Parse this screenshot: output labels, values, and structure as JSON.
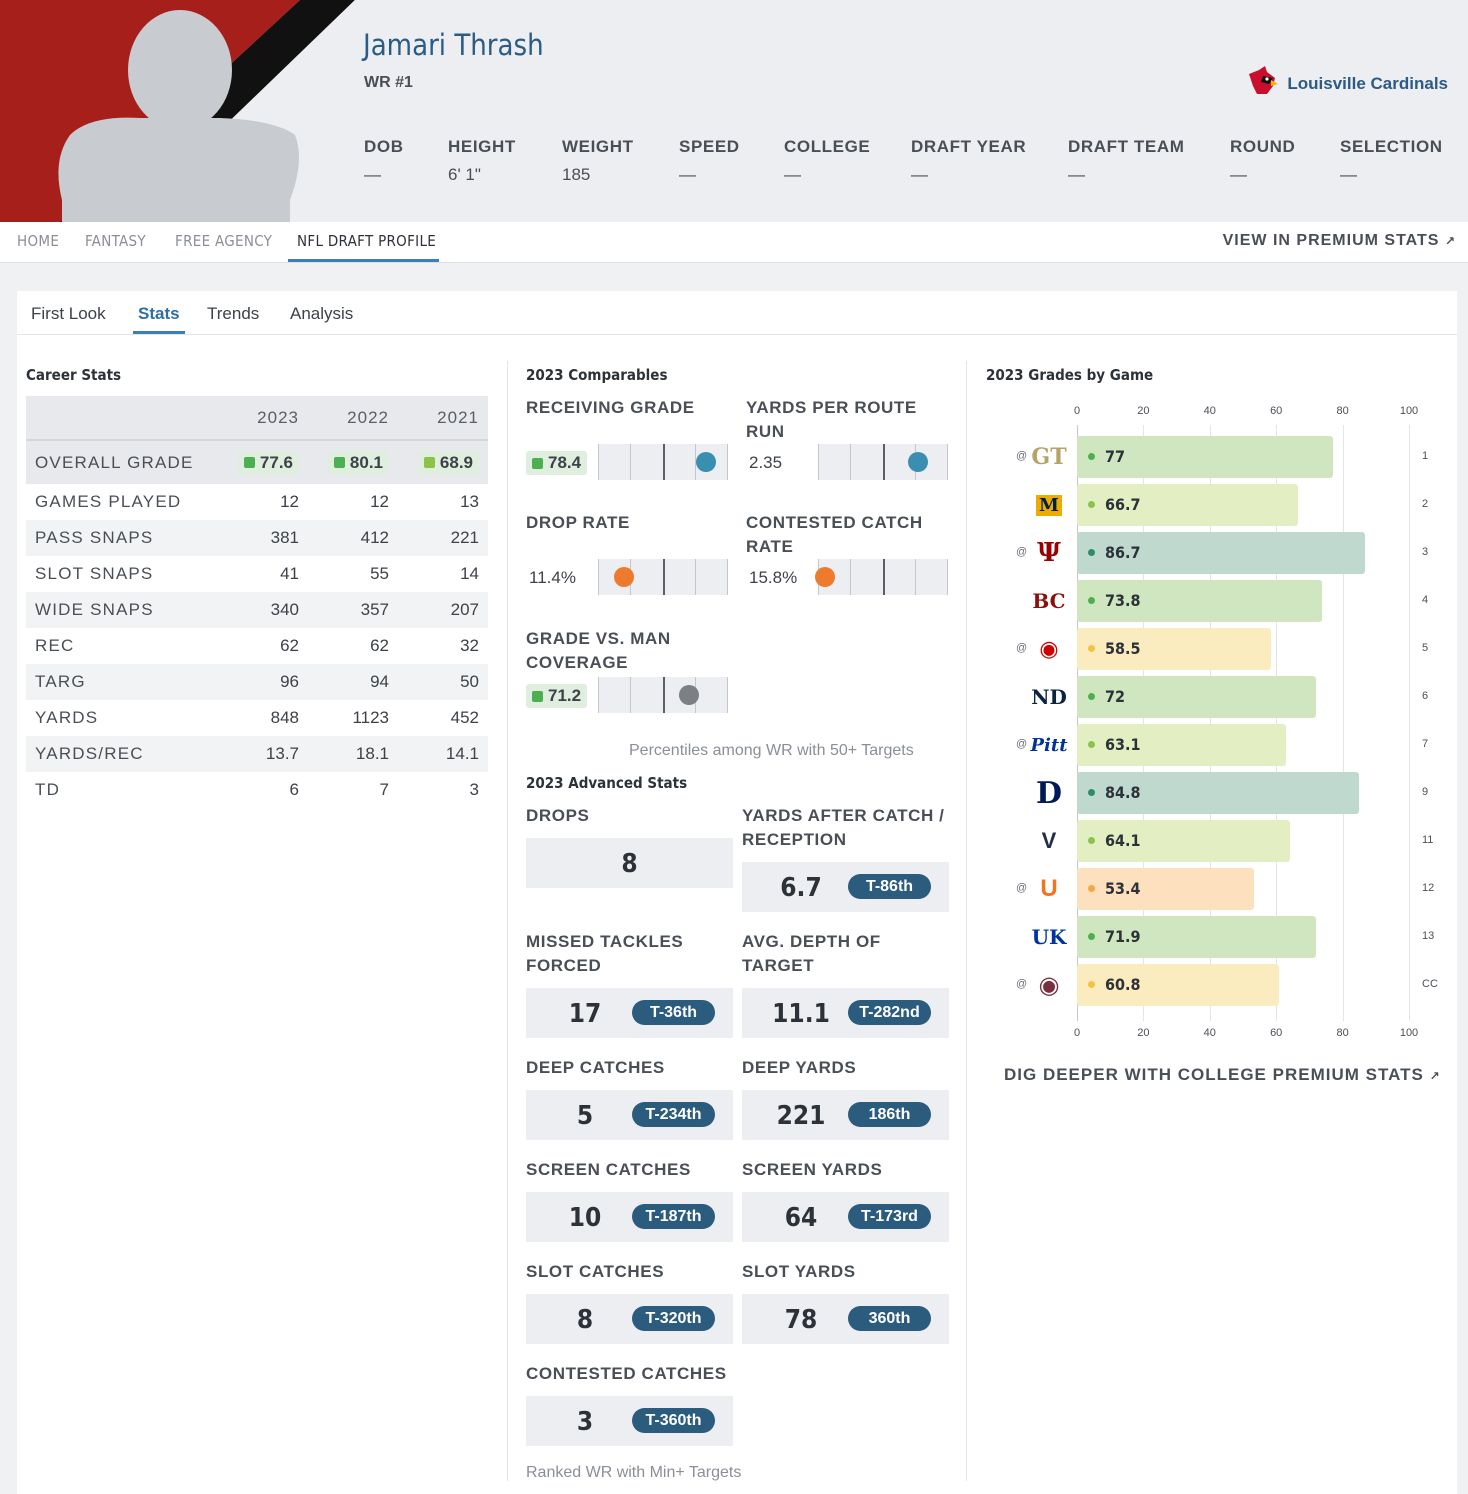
{
  "player": {
    "name": "Jamari Thrash",
    "position": "WR #1",
    "team": "Louisville Cardinals"
  },
  "header_stats": [
    {
      "label": "DOB",
      "value": "—"
    },
    {
      "label": "HEIGHT",
      "value": "6' 1\""
    },
    {
      "label": "WEIGHT",
      "value": "185"
    },
    {
      "label": "SPEED",
      "value": "—"
    },
    {
      "label": "COLLEGE",
      "value": "—"
    },
    {
      "label": "DRAFT YEAR",
      "value": "—"
    },
    {
      "label": "DRAFT TEAM",
      "value": "—"
    },
    {
      "label": "ROUND",
      "value": "—"
    },
    {
      "label": "SELECTION",
      "value": "—"
    }
  ],
  "nav": {
    "items": [
      "HOME",
      "FANTASY",
      "FREE AGENCY",
      "NFL DRAFT PROFILE"
    ],
    "active": "NFL DRAFT PROFILE",
    "premium_link": "VIEW IN PREMIUM STATS"
  },
  "subtabs": [
    "First Look",
    "Stats",
    "Trends",
    "Analysis"
  ],
  "career_stats": {
    "title": "Career Stats",
    "years": [
      "2023",
      "2022",
      "2021"
    ],
    "rows": [
      {
        "label": "OVERALL GRADE",
        "values": [
          "77.6",
          "80.1",
          "68.9"
        ],
        "grade": true
      },
      {
        "label": "GAMES PLAYED",
        "values": [
          "12",
          "12",
          "13"
        ]
      },
      {
        "label": "PASS SNAPS",
        "values": [
          "381",
          "412",
          "221"
        ]
      },
      {
        "label": "SLOT SNAPS",
        "values": [
          "41",
          "55",
          "14"
        ]
      },
      {
        "label": "WIDE SNAPS",
        "values": [
          "340",
          "357",
          "207"
        ]
      },
      {
        "label": "REC",
        "values": [
          "62",
          "62",
          "32"
        ]
      },
      {
        "label": "TARG",
        "values": [
          "96",
          "94",
          "50"
        ]
      },
      {
        "label": "YARDS",
        "values": [
          "848",
          "1123",
          "452"
        ]
      },
      {
        "label": "YARDS/REC",
        "values": [
          "13.7",
          "18.1",
          "14.1"
        ]
      },
      {
        "label": "TD",
        "values": [
          "6",
          "7",
          "3"
        ]
      }
    ],
    "grade_colors": [
      "#4caf50",
      "#4caf50",
      "#8bc34a"
    ]
  },
  "comparables": {
    "title": "2023 Comparables",
    "items": [
      {
        "label": "RECEIVING GRADE",
        "value": "78.4",
        "grade": true,
        "percentile": 83,
        "color": "#3a8fb0"
      },
      {
        "label": "YARDS PER ROUTE RUN",
        "value": "2.35",
        "percentile": 77,
        "color": "#3a8fb0"
      },
      {
        "label": "DROP RATE",
        "value": "11.4%",
        "percentile": 20,
        "color": "#ee7a2e"
      },
      {
        "label": "CONTESTED CATCH RATE",
        "value": "15.8%",
        "percentile": 5,
        "color": "#ee7a2e"
      },
      {
        "label": "GRADE VS. MAN COVERAGE",
        "value": "71.2",
        "grade": true,
        "percentile": 70,
        "color": "#7c8085"
      }
    ],
    "note": "Percentiles among WR with 50+ Targets"
  },
  "advanced": {
    "title": "2023 Advanced Stats",
    "items": [
      {
        "label": "DROPS",
        "value": "8",
        "rank": ""
      },
      {
        "label": "YARDS AFTER CATCH / RECEPTION",
        "value": "6.7",
        "rank": "T-86th"
      },
      {
        "label": "MISSED TACKLES FORCED",
        "value": "17",
        "rank": "T-36th"
      },
      {
        "label": "AVG. DEPTH OF TARGET",
        "value": "11.1",
        "rank": "T-282nd"
      },
      {
        "label": "DEEP CATCHES",
        "value": "5",
        "rank": "T-234th"
      },
      {
        "label": "DEEP YARDS",
        "value": "221",
        "rank": "186th"
      },
      {
        "label": "SCREEN CATCHES",
        "value": "10",
        "rank": "T-187th"
      },
      {
        "label": "SCREEN YARDS",
        "value": "64",
        "rank": "T-173rd"
      },
      {
        "label": "SLOT CATCHES",
        "value": "8",
        "rank": "T-320th"
      },
      {
        "label": "SLOT YARDS",
        "value": "78",
        "rank": "360th"
      },
      {
        "label": "CONTESTED CATCHES",
        "value": "3",
        "rank": "T-360th"
      }
    ],
    "note": "Ranked WR with Min+ Targets"
  },
  "chart_data": {
    "type": "bar",
    "title": "2023 Grades by Game",
    "orientation": "horizontal",
    "xlim": [
      0,
      100
    ],
    "ticks": [
      "0",
      "20",
      "40",
      "60",
      "80",
      "100"
    ],
    "games": [
      {
        "opponent_icon": "georgia-tech-logo",
        "away": true,
        "grade": 77,
        "label": "77",
        "week": "1",
        "color": "#cfe6c0",
        "dot": "#4caf50"
      },
      {
        "opponent_icon": "murray-state-logo",
        "away": false,
        "grade": 66.7,
        "label": "66.7",
        "week": "2",
        "color": "#e4eec3",
        "dot": "#8bc34a"
      },
      {
        "opponent_icon": "indiana-logo",
        "away": true,
        "grade": 86.7,
        "label": "86.7",
        "week": "3",
        "color": "#bfd9cf",
        "dot": "#2e8b6e"
      },
      {
        "opponent_icon": "boston-college-logo",
        "away": false,
        "grade": 73.8,
        "label": "73.8",
        "week": "4",
        "color": "#cfe6c0",
        "dot": "#4caf50"
      },
      {
        "opponent_icon": "nc-state-logo",
        "away": true,
        "grade": 58.5,
        "label": "58.5",
        "week": "5",
        "color": "#fbecc0",
        "dot": "#f5c342"
      },
      {
        "opponent_icon": "notre-dame-logo",
        "away": false,
        "grade": 72,
        "label": "72",
        "week": "6",
        "color": "#cfe6c0",
        "dot": "#4caf50"
      },
      {
        "opponent_icon": "pitt-logo",
        "away": true,
        "grade": 63.1,
        "label": "63.1",
        "week": "7",
        "color": "#e4eec3",
        "dot": "#8bc34a"
      },
      {
        "opponent_icon": "duke-logo",
        "away": false,
        "grade": 84.8,
        "label": "84.8",
        "week": "9",
        "color": "#bfd9cf",
        "dot": "#2e8b6e"
      },
      {
        "opponent_icon": "virginia-logo",
        "away": false,
        "grade": 64.1,
        "label": "64.1",
        "week": "11",
        "color": "#e4eec3",
        "dot": "#8bc34a"
      },
      {
        "opponent_icon": "miami-logo",
        "away": true,
        "grade": 53.4,
        "label": "53.4",
        "week": "12",
        "color": "#fde0bd",
        "dot": "#f5a742"
      },
      {
        "opponent_icon": "kentucky-logo",
        "away": false,
        "grade": 71.9,
        "label": "71.9",
        "week": "13",
        "color": "#cfe6c0",
        "dot": "#4caf50"
      },
      {
        "opponent_icon": "florida-state-logo",
        "away": true,
        "grade": 60.8,
        "label": "60.8",
        "week": "CC",
        "color": "#fbecc0",
        "dot": "#f5c342"
      }
    ]
  },
  "away_marker": "@",
  "dig_deeper": "DIG DEEPER WITH COLLEGE PREMIUM STATS",
  "colors": {
    "accent": "#2c5b86",
    "rank_badge": "#2b5b7d",
    "team_red": "#a61f1a"
  }
}
